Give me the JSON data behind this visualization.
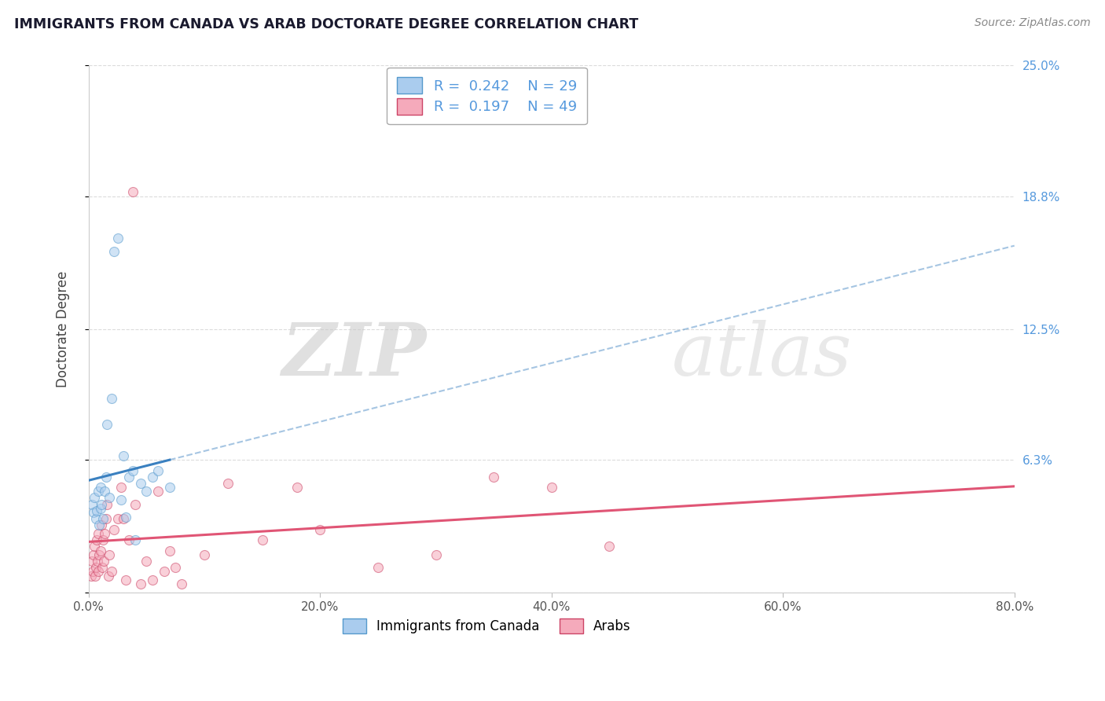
{
  "title": "IMMIGRANTS FROM CANADA VS ARAB DOCTORATE DEGREE CORRELATION CHART",
  "source": "Source: ZipAtlas.com",
  "ylabel": "Doctorate Degree",
  "legend_labels": [
    "Immigrants from Canada",
    "Arabs"
  ],
  "blue_color": "#aaccee",
  "pink_color": "#f5aabb",
  "blue_line_color": "#3a80c0",
  "pink_line_color": "#e05575",
  "blue_edge": "#5599cc",
  "pink_edge": "#cc4466",
  "blue_scatter": [
    [
      0.3,
      4.2
    ],
    [
      0.4,
      3.8
    ],
    [
      0.5,
      4.5
    ],
    [
      0.6,
      3.5
    ],
    [
      0.7,
      3.9
    ],
    [
      0.8,
      4.8
    ],
    [
      0.9,
      3.2
    ],
    [
      1.0,
      4.0
    ],
    [
      1.05,
      5.0
    ],
    [
      1.1,
      4.2
    ],
    [
      1.2,
      3.5
    ],
    [
      1.35,
      4.8
    ],
    [
      1.5,
      5.5
    ],
    [
      1.6,
      8.0
    ],
    [
      1.8,
      4.5
    ],
    [
      2.0,
      9.2
    ],
    [
      2.2,
      16.2
    ],
    [
      2.5,
      16.8
    ],
    [
      2.8,
      4.4
    ],
    [
      3.0,
      6.5
    ],
    [
      3.2,
      3.6
    ],
    [
      3.5,
      5.5
    ],
    [
      3.8,
      5.8
    ],
    [
      4.0,
      2.5
    ],
    [
      4.5,
      5.2
    ],
    [
      5.0,
      4.8
    ],
    [
      5.5,
      5.5
    ],
    [
      6.0,
      5.8
    ],
    [
      7.0,
      5.0
    ]
  ],
  "pink_scatter": [
    [
      0.2,
      0.8
    ],
    [
      0.3,
      1.5
    ],
    [
      0.35,
      1.0
    ],
    [
      0.4,
      1.8
    ],
    [
      0.5,
      2.2
    ],
    [
      0.55,
      0.8
    ],
    [
      0.6,
      1.2
    ],
    [
      0.7,
      2.5
    ],
    [
      0.75,
      1.5
    ],
    [
      0.8,
      2.8
    ],
    [
      0.85,
      1.0
    ],
    [
      0.9,
      1.8
    ],
    [
      1.0,
      2.0
    ],
    [
      1.1,
      3.2
    ],
    [
      1.15,
      1.2
    ],
    [
      1.2,
      2.5
    ],
    [
      1.3,
      1.5
    ],
    [
      1.4,
      2.8
    ],
    [
      1.5,
      3.5
    ],
    [
      1.6,
      4.2
    ],
    [
      1.7,
      0.8
    ],
    [
      1.8,
      1.8
    ],
    [
      2.0,
      1.0
    ],
    [
      2.2,
      3.0
    ],
    [
      2.5,
      3.5
    ],
    [
      2.8,
      5.0
    ],
    [
      3.0,
      3.5
    ],
    [
      3.2,
      0.6
    ],
    [
      3.5,
      2.5
    ],
    [
      3.8,
      19.0
    ],
    [
      4.0,
      4.2
    ],
    [
      4.5,
      0.4
    ],
    [
      5.0,
      1.5
    ],
    [
      5.5,
      0.6
    ],
    [
      6.0,
      4.8
    ],
    [
      6.5,
      1.0
    ],
    [
      7.0,
      2.0
    ],
    [
      7.5,
      1.2
    ],
    [
      8.0,
      0.4
    ],
    [
      10.0,
      1.8
    ],
    [
      12.0,
      5.2
    ],
    [
      15.0,
      2.5
    ],
    [
      18.0,
      5.0
    ],
    [
      20.0,
      3.0
    ],
    [
      25.0,
      1.2
    ],
    [
      30.0,
      1.8
    ],
    [
      35.0,
      5.5
    ],
    [
      40.0,
      5.0
    ],
    [
      45.0,
      2.2
    ]
  ],
  "xlim": [
    0,
    80
  ],
  "ylim": [
    0,
    25
  ],
  "ytick_vals": [
    0,
    6.3,
    12.5,
    18.8,
    25.0
  ],
  "ytick_labels_right": [
    "",
    "6.3%",
    "12.5%",
    "18.8%",
    "25.0%"
  ],
  "xtick_vals": [
    0,
    20,
    40,
    60,
    80
  ],
  "xtick_labels": [
    "0.0%",
    "20.0%",
    "40.0%",
    "60.0%",
    "80.0%"
  ],
  "blue_r": 0.242,
  "blue_n": 29,
  "pink_r": 0.197,
  "pink_n": 49,
  "scatter_size": 75,
  "scatter_alpha": 0.55,
  "watermark_zip": "ZIP",
  "watermark_atlas": "atlas",
  "accent_blue": "#5599dd",
  "accent_pink": "#e05575",
  "text_dark": "#1a1a2e",
  "grid_color": "#cccccc"
}
